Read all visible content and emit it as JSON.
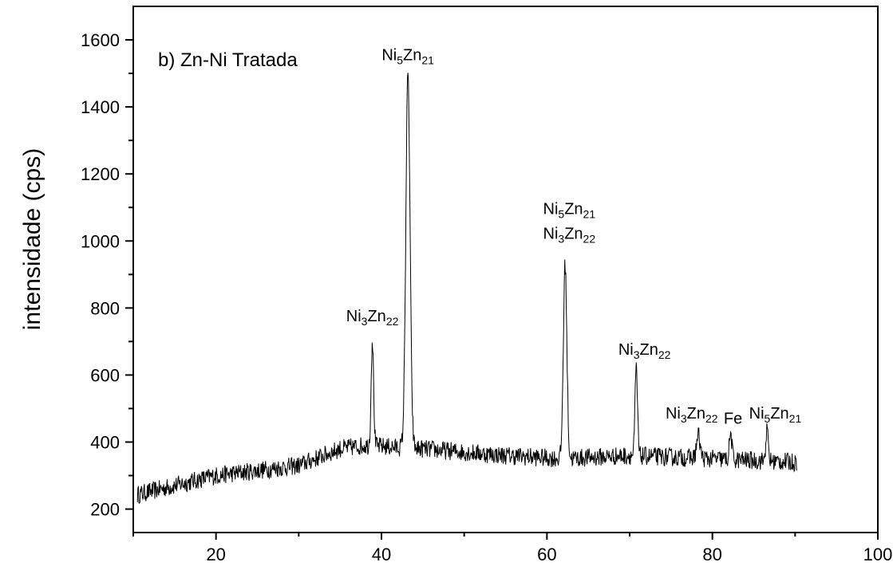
{
  "chart_data": {
    "type": "line",
    "title": "b) Zn-Ni Tratada",
    "xlabel": "",
    "ylabel": "intensidade (cps)",
    "xlim": [
      10,
      100
    ],
    "ylim": [
      130,
      1700
    ],
    "x_ticks": [
      20,
      40,
      60,
      80,
      100
    ],
    "y_ticks": [
      200,
      400,
      600,
      800,
      1000,
      1200,
      1400,
      1600
    ],
    "grid": false,
    "baseline": [
      [
        10,
        240
      ],
      [
        20,
        300
      ],
      [
        30,
        330
      ],
      [
        35,
        380
      ],
      [
        38,
        390
      ],
      [
        45,
        380
      ],
      [
        55,
        360
      ],
      [
        62,
        350
      ],
      [
        70,
        360
      ],
      [
        80,
        350
      ],
      [
        90,
        340
      ]
    ],
    "peaks": [
      {
        "x": 38.9,
        "y": 705,
        "width": 0.35
      },
      {
        "x": 43.2,
        "y": 1495,
        "width": 0.6
      },
      {
        "x": 62.2,
        "y": 930,
        "width": 0.5
      },
      {
        "x": 70.8,
        "y": 620,
        "width": 0.35
      },
      {
        "x": 78.3,
        "y": 420,
        "width": 0.5
      },
      {
        "x": 82.2,
        "y": 425,
        "width": 0.35
      },
      {
        "x": 86.6,
        "y": 435,
        "width": 0.35
      }
    ],
    "x_range": [
      10.5,
      90.2
    ],
    "annotations": [
      {
        "x": 38.9,
        "y": 760,
        "lines": [
          [
            {
              "t": "Ni"
            },
            {
              "t": "3",
              "sub": true
            },
            {
              "t": "Zn"
            },
            {
              "t": "22",
              "sub": true
            }
          ]
        ]
      },
      {
        "x": 43.2,
        "y": 1540,
        "lines": [
          [
            {
              "t": "Ni"
            },
            {
              "t": "5",
              "sub": true
            },
            {
              "t": "Zn"
            },
            {
              "t": "21",
              "sub": true
            }
          ]
        ]
      },
      {
        "x": 62.7,
        "y": 1080,
        "lines": [
          [
            {
              "t": "Ni"
            },
            {
              "t": "5",
              "sub": true
            },
            {
              "t": "Zn"
            },
            {
              "t": "21",
              "sub": true
            }
          ],
          [
            {
              "t": "Ni"
            },
            {
              "t": "3",
              "sub": true
            },
            {
              "t": "Zn"
            },
            {
              "t": "22",
              "sub": true
            }
          ]
        ]
      },
      {
        "x": 71.8,
        "y": 660,
        "lines": [
          [
            {
              "t": "Ni"
            },
            {
              "t": "3",
              "sub": true
            },
            {
              "t": "Zn"
            },
            {
              "t": "22",
              "sub": true
            }
          ]
        ]
      },
      {
        "x": 77.5,
        "y": 470,
        "lines": [
          [
            {
              "t": "Ni"
            },
            {
              "t": "3",
              "sub": true
            },
            {
              "t": "Zn"
            },
            {
              "t": "22",
              "sub": true
            }
          ]
        ]
      },
      {
        "x": 82.5,
        "y": 455,
        "lines": [
          [
            {
              "t": "Fe"
            }
          ]
        ]
      },
      {
        "x": 87.6,
        "y": 470,
        "lines": [
          [
            {
              "t": "Ni"
            },
            {
              "t": "5",
              "sub": true
            },
            {
              "t": "Zn"
            },
            {
              "t": "21",
              "sub": true
            }
          ]
        ]
      }
    ]
  }
}
